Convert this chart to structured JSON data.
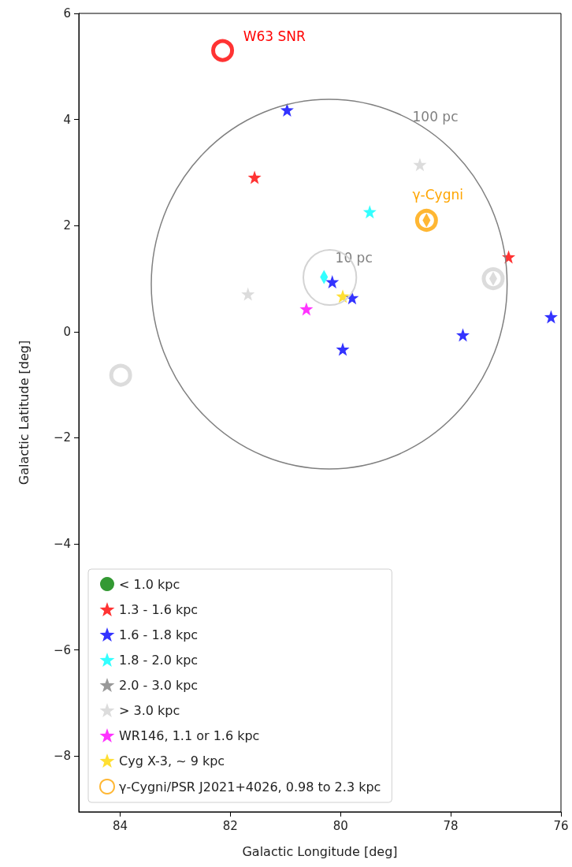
{
  "chart_data": {
    "type": "scatter",
    "xlabel": "Galactic Longitude [deg]",
    "ylabel": "Galactic Latitude [deg]",
    "xlim": [
      84.75,
      76
    ],
    "xticks": [
      84,
      82,
      80,
      78,
      76
    ],
    "ylim": [
      -9.05,
      6
    ],
    "yticks": [
      -8,
      -6,
      -4,
      -2,
      0,
      2,
      4,
      6
    ],
    "grid": false,
    "legend": "bottom left",
    "annotations": [
      "W63 SNR",
      "γ-Cygni",
      "100 pc",
      "10 pc"
    ],
    "series": [
      {
        "name": "< 1.0 kpc",
        "marker": "circle",
        "color": "#008000"
      },
      {
        "name": "1.3 - 1.6 kpc",
        "marker": "star",
        "color": "#ff0000",
        "x": [
          81.56,
          76.95
        ],
        "values": [
          2.91,
          1.41
        ]
      },
      {
        "name": "1.6 - 1.8 kpc",
        "marker": "star",
        "color": "#0000ff",
        "x": [
          80.97,
          80.15,
          79.79,
          79.96,
          77.78,
          76.18
        ],
        "values": [
          4.18,
          0.94,
          0.64,
          -0.33,
          -0.06,
          0.28
        ]
      },
      {
        "name": "1.8 - 2.0 kpc",
        "marker": "star",
        "color": "#00ffff",
        "x": [
          79.47
        ],
        "values": [
          2.26
        ]
      },
      {
        "name": "2.0 - 3.0 kpc",
        "marker": "star",
        "color": "#808080"
      },
      {
        "name": "> 3.0 kpc",
        "marker": "star",
        "color": "#d3d3d3",
        "x": [
          78.56,
          81.68
        ],
        "values": [
          3.15,
          0.71
        ]
      },
      {
        "name": "WR146, 1.1 or 1.6 kpc",
        "marker": "star",
        "color": "#ff00ff",
        "x": [
          80.62
        ],
        "values": [
          0.43
        ]
      },
      {
        "name": "Cyg X-3, ~ 9 kpc",
        "marker": "star",
        "color": "#ffd700",
        "x": [
          79.96
        ],
        "values": [
          0.67
        ]
      },
      {
        "name": "γ-Cygni/PSR J2021+4026, 0.98 to 2.3 kpc",
        "marker": "circle",
        "line_style": "solid",
        "color": "#ffa500",
        "x": [
          78.44
        ],
        "values": [
          2.1
        ]
      },
      {
        "marker": "circle",
        "line_style": "solid",
        "color": "#ff0000",
        "x": [
          82.14
        ],
        "values": [
          5.3
        ]
      },
      {
        "marker": "circle",
        "line_style": "solid",
        "color": "#d3d3d3",
        "x": [
          77.23,
          83.99
        ],
        "values": [
          1.0,
          -0.82
        ]
      },
      {
        "marker": "diamond",
        "colors": [
          "#00ffff",
          "#ffa500",
          "#d3d3d3"
        ],
        "x": [
          80.3,
          78.44,
          77.23
        ],
        "values": [
          1.03,
          2.1,
          1.0
        ]
      }
    ]
  }
}
